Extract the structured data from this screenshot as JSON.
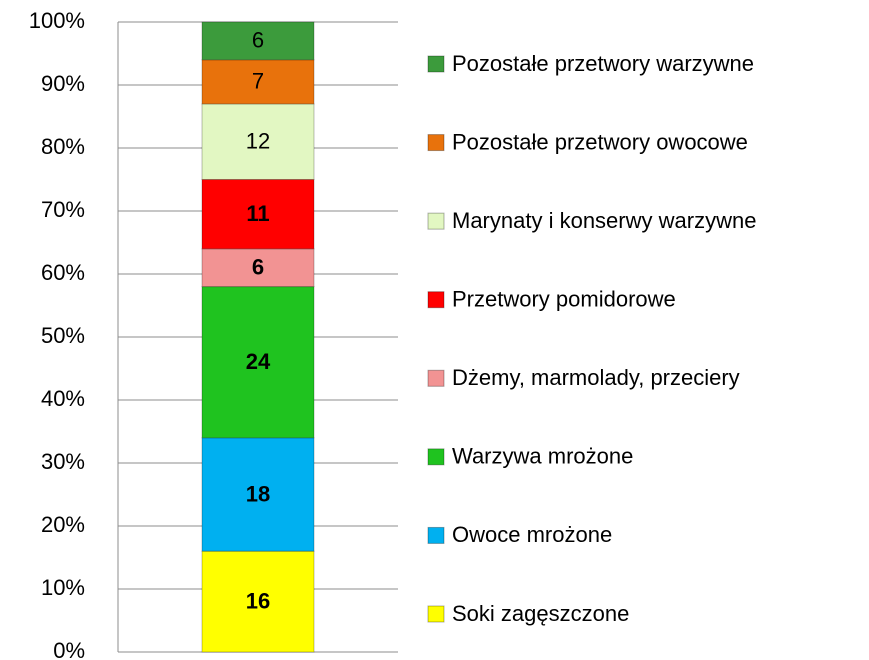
{
  "chart_data": {
    "type": "stacked_bar",
    "categories": [
      null
    ],
    "series": [
      {
        "name": "Soki zagęszczone",
        "color": "#ffff00",
        "values": [
          16
        ]
      },
      {
        "name": "Owoce mrożone",
        "color": "#00b0f0",
        "values": [
          18
        ]
      },
      {
        "name": "Warzywa mrożone",
        "color": "#1fc31f",
        "values": [
          24
        ]
      },
      {
        "name": "Dżemy, marmolady, przeciery",
        "color": "#f29393",
        "values": [
          6
        ]
      },
      {
        "name": "Przetwory pomidorowe",
        "color": "#ff0000",
        "values": [
          11
        ]
      },
      {
        "name": "Marynaty i konserwy warzywne",
        "color": "#e2f7c2",
        "values": [
          12
        ]
      },
      {
        "name": "Pozostałe przetwory owocowe",
        "color": "#e8720c",
        "values": [
          7
        ]
      },
      {
        "name": "Pozostałe przetwory warzywne",
        "color": "#3c9b3c",
        "values": [
          6
        ]
      }
    ],
    "ylim": [
      0,
      100
    ],
    "yticks": [
      {
        "value": 0,
        "label": "0%"
      },
      {
        "value": 10,
        "label": "10%"
      },
      {
        "value": 20,
        "label": "20%"
      },
      {
        "value": 30,
        "label": "30%"
      },
      {
        "value": 40,
        "label": "40%"
      },
      {
        "value": 50,
        "label": "50%"
      },
      {
        "value": 60,
        "label": "60%"
      },
      {
        "value": 70,
        "label": "70%"
      },
      {
        "value": 80,
        "label": "80%"
      },
      {
        "value": 90,
        "label": "90%"
      },
      {
        "value": 100,
        "label": "100%"
      }
    ],
    "grid": true,
    "legend": "right"
  }
}
